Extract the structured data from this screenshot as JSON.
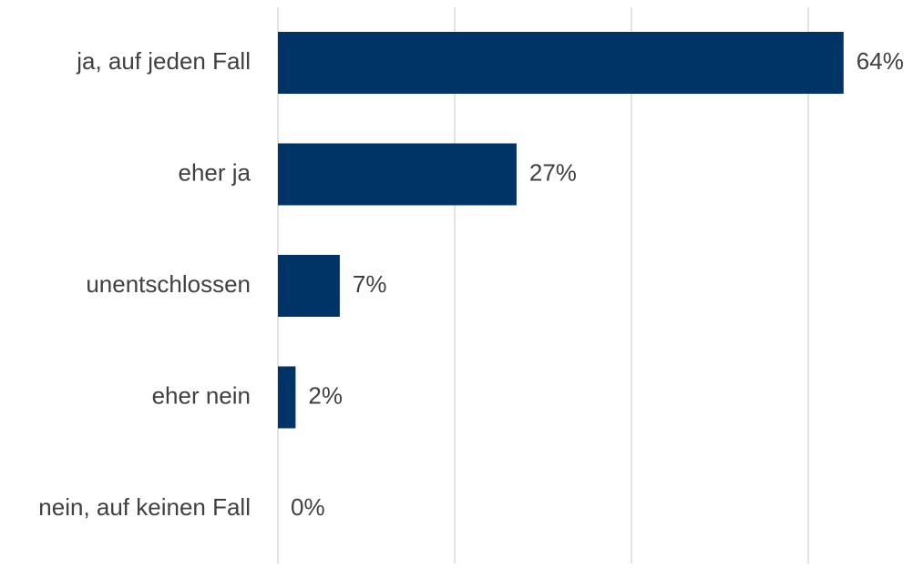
{
  "chart_data": {
    "type": "bar",
    "orientation": "horizontal",
    "categories": [
      "ja, auf jeden Fall",
      "eher ja",
      "unentschlossen",
      "eher nein",
      "nein, auf keinen Fall"
    ],
    "values": [
      64,
      27,
      7,
      2,
      0
    ],
    "value_labels": [
      "64%",
      "27%",
      "7%",
      "2%",
      "0%"
    ],
    "color": "#003366",
    "xlim": [
      0,
      70
    ],
    "xticks": [
      0,
      20,
      40,
      60
    ],
    "grid": true
  }
}
